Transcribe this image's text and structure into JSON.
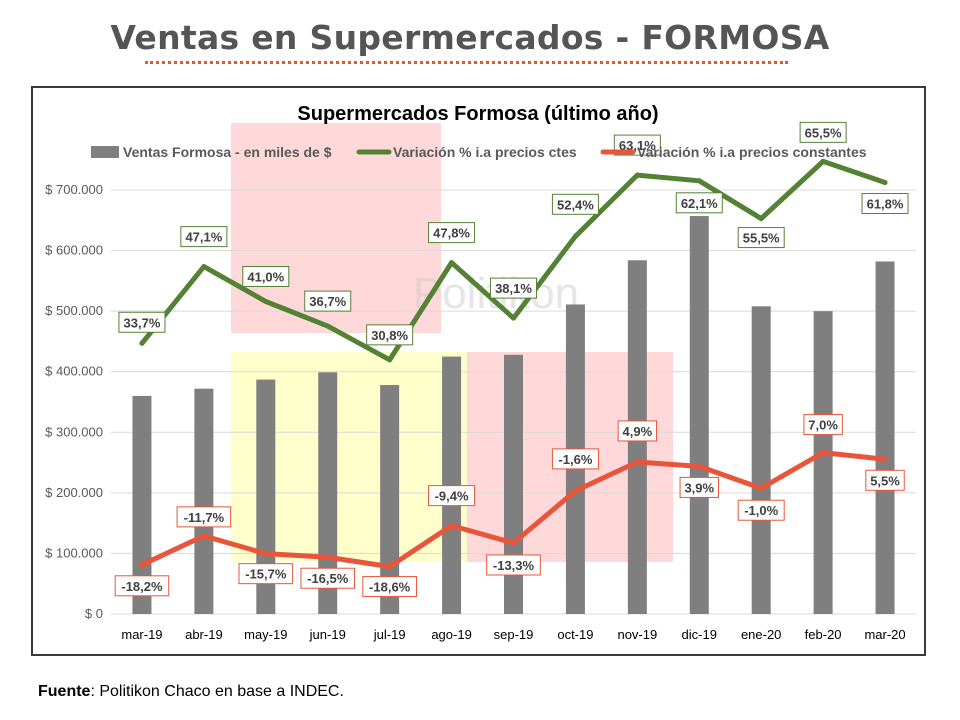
{
  "header": {
    "title": "Ventas en Supermercados - FORMOSA"
  },
  "footer": {
    "label": "Fuente",
    "text": ": Politikon Chaco en base a INDEC."
  },
  "watermark": "Politikon",
  "colors": {
    "bars": "#7f7f7f",
    "green_line": "#548235",
    "red_line": "#e8553a",
    "highlight_red": "#ffd9d9",
    "highlight_yellow": "#ffffcc",
    "title_text": "#555555",
    "underline": "#e05a2b"
  },
  "chart_data": {
    "type": "bar",
    "title": "Supermercados Formosa (último año)",
    "categories": [
      "mar-19",
      "abr-19",
      "may-19",
      "jun-19",
      "jul-19",
      "ago-19",
      "sep-19",
      "oct-19",
      "nov-19",
      "dic-19",
      "ene-20",
      "feb-20",
      "mar-20"
    ],
    "ylim": [
      0,
      700000
    ],
    "yticks": [
      0,
      100000,
      200000,
      300000,
      400000,
      500000,
      600000,
      700000
    ],
    "ytick_labels": [
      "$ 0",
      "$ 100.000",
      "$ 200.000",
      "$ 300.000",
      "$ 400.000",
      "$ 500.000",
      "$ 600.000",
      "$ 700.000"
    ],
    "legend_position": "top",
    "grid": true,
    "series": [
      {
        "name": "Ventas Formosa - en miles de $",
        "type": "bar",
        "values": [
          360000,
          372000,
          387000,
          399000,
          378000,
          425000,
          428000,
          511000,
          584000,
          657000,
          508000,
          500000,
          582000
        ]
      },
      {
        "name": "Variación % i.a precios ctes",
        "type": "line",
        "values": [
          33.7,
          47.1,
          41.0,
          36.7,
          30.8,
          47.8,
          38.1,
          52.4,
          63.1,
          62.1,
          55.5,
          65.5,
          61.8
        ],
        "labels": [
          "33,7%",
          "47,1%",
          "41,0%",
          "36,7%",
          "30,8%",
          "47,8%",
          "38,1%",
          "52,4%",
          "63,1%",
          "62,1%",
          "55,5%",
          "65,5%",
          "61,8%"
        ]
      },
      {
        "name": "Variación % i.a precios constantes",
        "type": "line",
        "values": [
          -18.2,
          -11.7,
          -15.7,
          -16.5,
          -18.6,
          -9.4,
          -13.3,
          -1.6,
          4.9,
          3.9,
          -1.0,
          7.0,
          5.5
        ],
        "labels": [
          "-18,2%",
          "-11,7%",
          "-15,7%",
          "-16,5%",
          "-18,6%",
          "-9,4%",
          "-13,3%",
          "-1,6%",
          "4,9%",
          "3,9%",
          "-1,0%",
          "7,0%",
          "5,5%"
        ]
      }
    ]
  }
}
